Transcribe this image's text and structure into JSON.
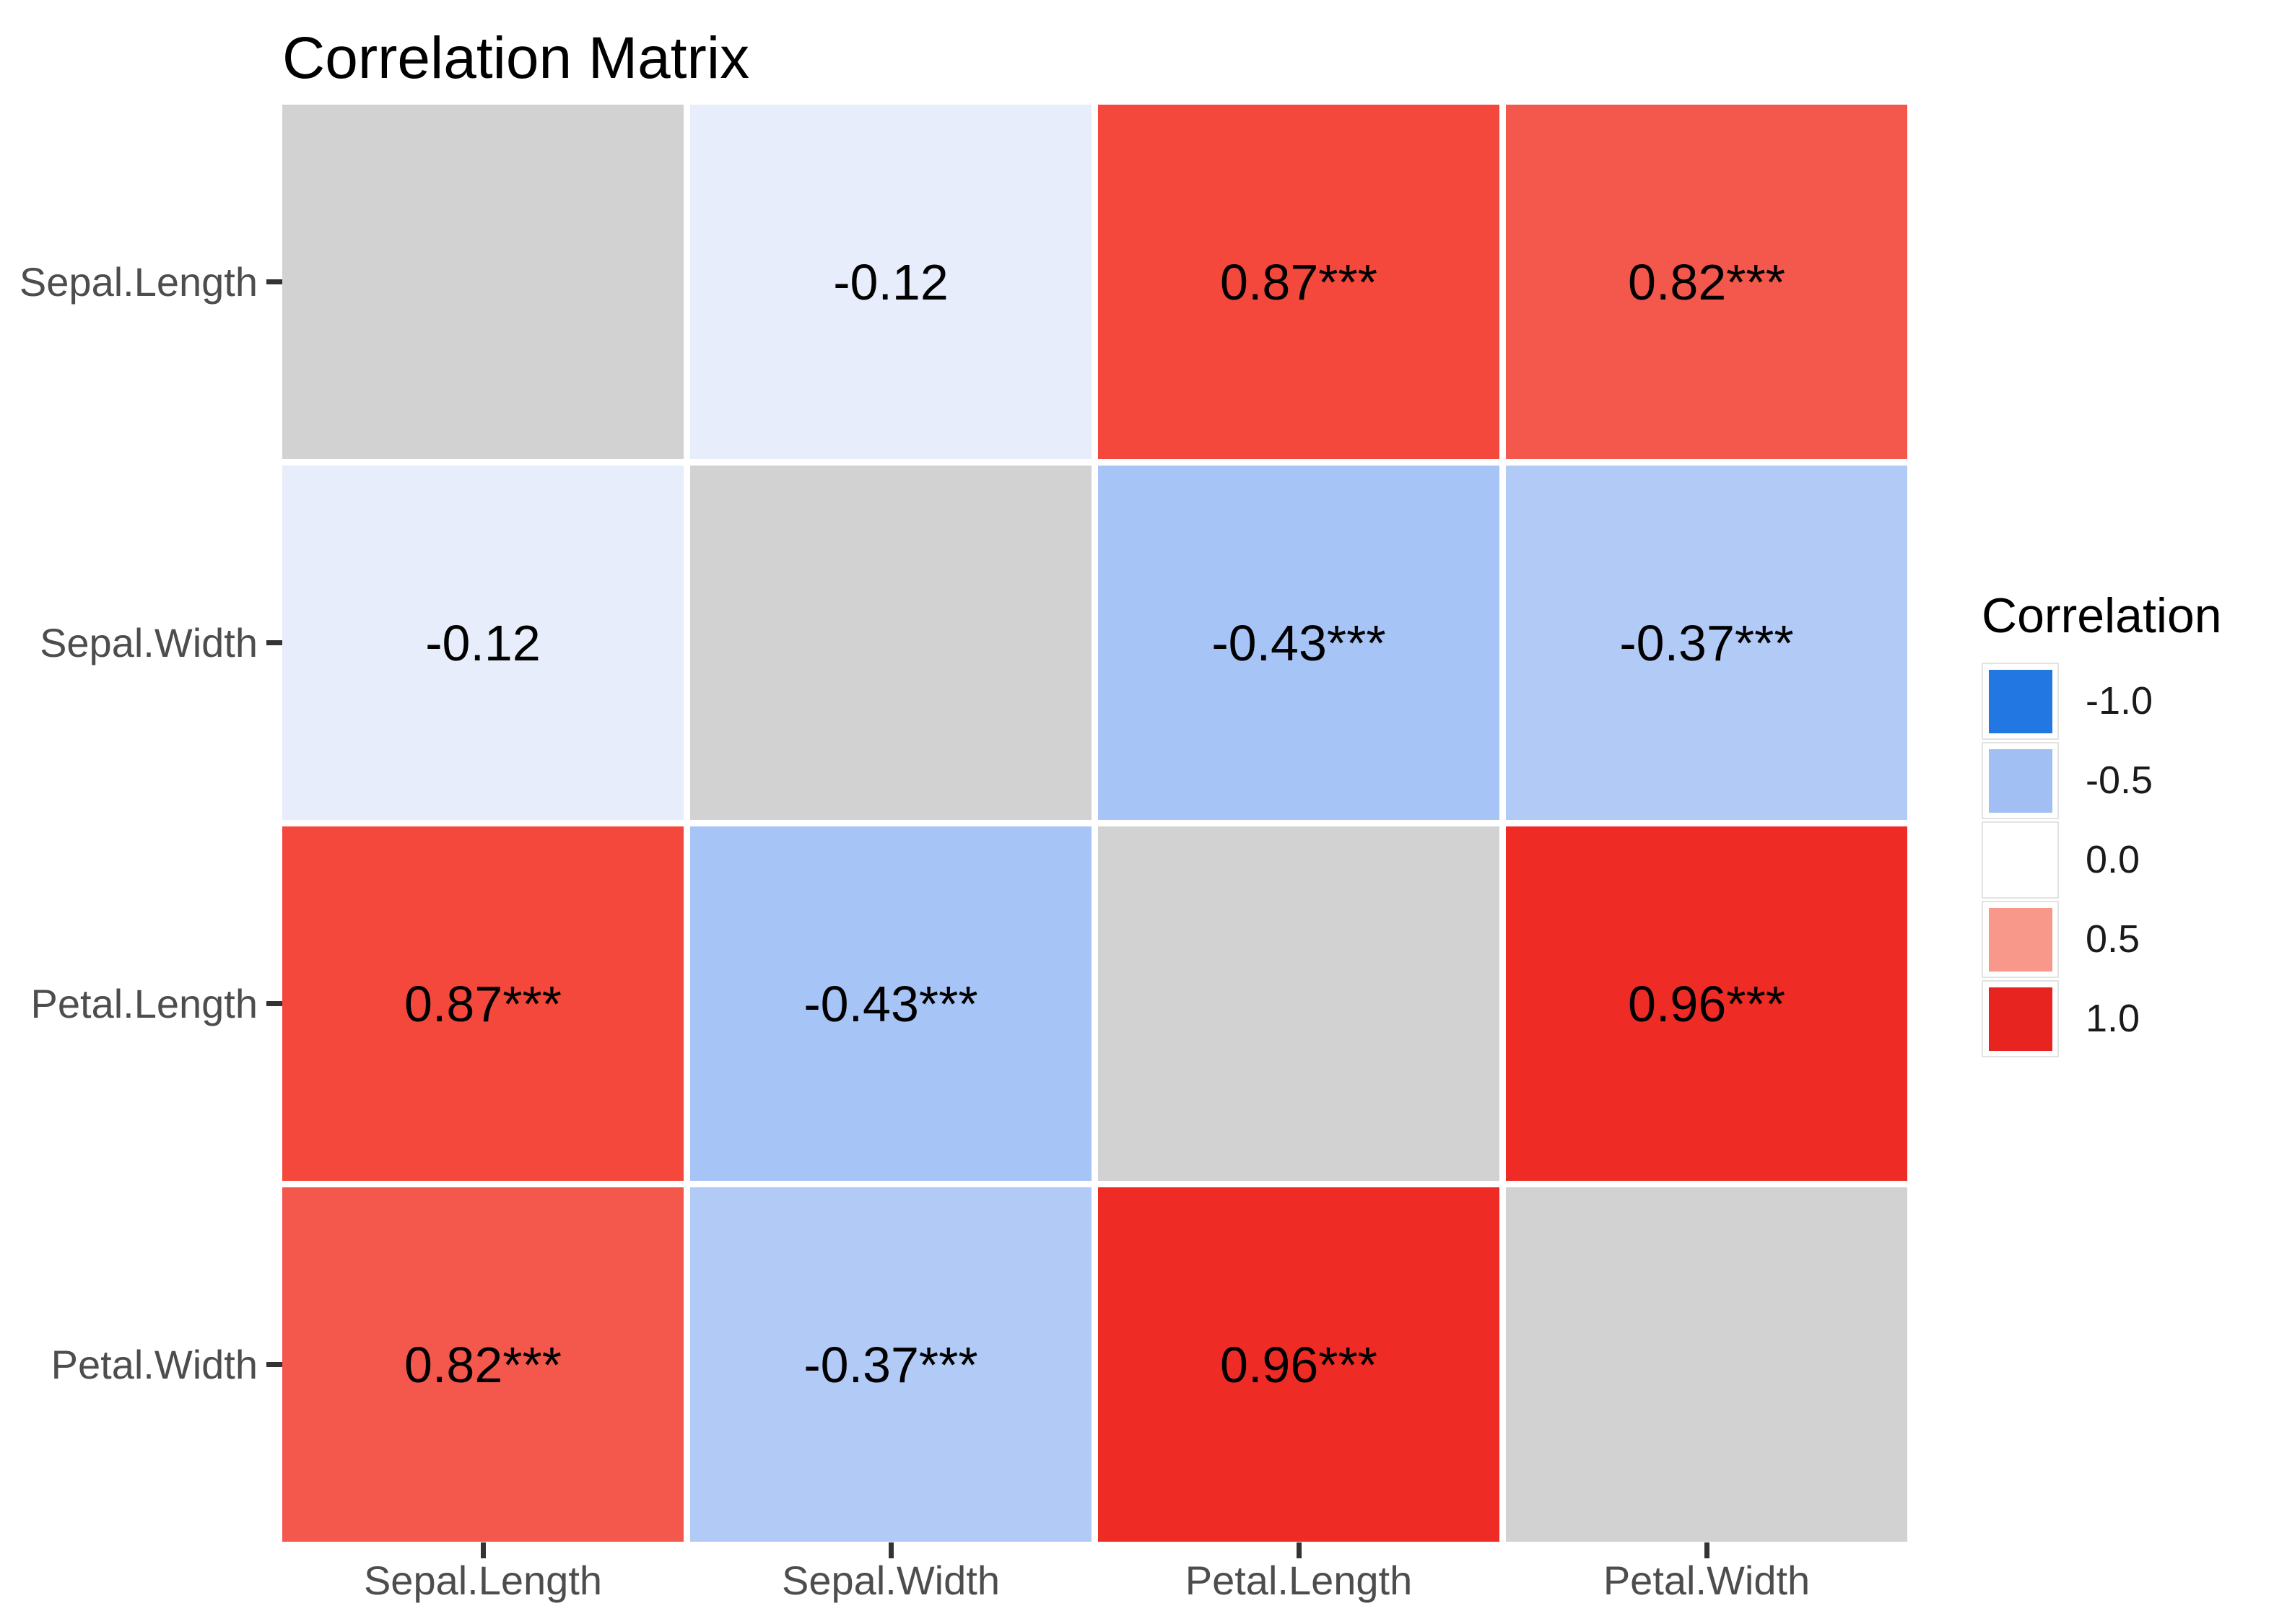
{
  "title": "Correlation Matrix",
  "chart_data": {
    "type": "heatmap",
    "title": "Correlation Matrix",
    "x_categories": [
      "Sepal.Length",
      "Sepal.Width",
      "Petal.Length",
      "Petal.Width"
    ],
    "y_categories": [
      "Sepal.Length",
      "Sepal.Width",
      "Petal.Length",
      "Petal.Width"
    ],
    "diagonal_color": "#D2D2D2",
    "grid_gap_color": "#FFFFFF",
    "cells": [
      {
        "row": "Sepal.Length",
        "col": "Sepal.Length",
        "value": null,
        "label": "",
        "fill": "#D2D2D2"
      },
      {
        "row": "Sepal.Length",
        "col": "Sepal.Width",
        "value": -0.12,
        "label": "-0.12",
        "fill": "#E7EDFA"
      },
      {
        "row": "Sepal.Length",
        "col": "Petal.Length",
        "value": 0.87,
        "label": "0.87***",
        "fill": "#F4483D"
      },
      {
        "row": "Sepal.Length",
        "col": "Petal.Width",
        "value": 0.82,
        "label": "0.82***",
        "fill": "#F4574C"
      },
      {
        "row": "Sepal.Width",
        "col": "Sepal.Length",
        "value": -0.12,
        "label": "-0.12",
        "fill": "#E7EDFA"
      },
      {
        "row": "Sepal.Width",
        "col": "Sepal.Width",
        "value": null,
        "label": "",
        "fill": "#D2D2D2"
      },
      {
        "row": "Sepal.Width",
        "col": "Petal.Length",
        "value": -0.43,
        "label": "-0.43***",
        "fill": "#A6C4F6"
      },
      {
        "row": "Sepal.Width",
        "col": "Petal.Width",
        "value": -0.37,
        "label": "-0.37***",
        "fill": "#B2CAF6"
      },
      {
        "row": "Petal.Length",
        "col": "Sepal.Length",
        "value": 0.87,
        "label": "0.87***",
        "fill": "#F4483D"
      },
      {
        "row": "Petal.Length",
        "col": "Sepal.Width",
        "value": -0.43,
        "label": "-0.43***",
        "fill": "#A6C4F6"
      },
      {
        "row": "Petal.Length",
        "col": "Petal.Length",
        "value": null,
        "label": "",
        "fill": "#D2D2D2"
      },
      {
        "row": "Petal.Length",
        "col": "Petal.Width",
        "value": 0.96,
        "label": "0.96***",
        "fill": "#EE2B24"
      },
      {
        "row": "Petal.Width",
        "col": "Sepal.Length",
        "value": 0.82,
        "label": "0.82***",
        "fill": "#F4574C"
      },
      {
        "row": "Petal.Width",
        "col": "Sepal.Width",
        "value": -0.37,
        "label": "-0.37***",
        "fill": "#B2CAF6"
      },
      {
        "row": "Petal.Width",
        "col": "Petal.Length",
        "value": 0.96,
        "label": "0.96***",
        "fill": "#EE2B24"
      },
      {
        "row": "Petal.Width",
        "col": "Petal.Width",
        "value": null,
        "label": "",
        "fill": "#D2D2D2"
      }
    ],
    "legend": {
      "title": "Correlation",
      "entries": [
        {
          "label": "-1.0",
          "color": "#2277E3"
        },
        {
          "label": "-0.5",
          "color": "#A1BFF3"
        },
        {
          "label": "0.0",
          "color": "#FFFFFF"
        },
        {
          "label": "0.5",
          "color": "#F8988B"
        },
        {
          "label": "1.0",
          "color": "#E82420"
        }
      ],
      "position": "right"
    },
    "axis_range": null,
    "grid": false
  },
  "colors": {
    "background": "#FFFFFF",
    "axis_text": "#4D4D4D",
    "tick_mark": "#333333",
    "cell_text": "#000000",
    "negative_end": "#2277E3",
    "midpoint": "#FFFFFF",
    "positive_end": "#E82420",
    "na_diagonal": "#D2D2D2"
  }
}
